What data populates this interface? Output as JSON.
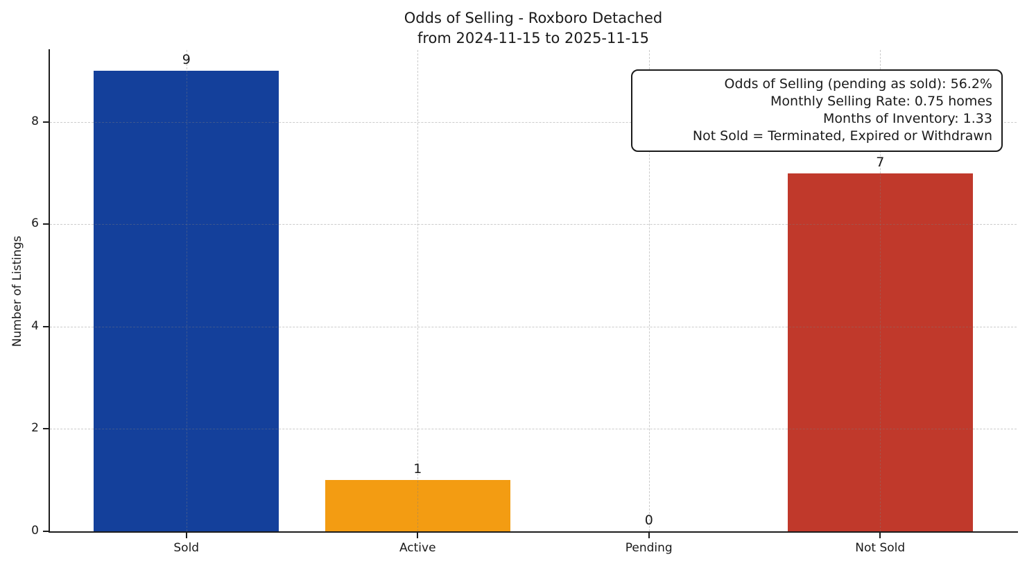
{
  "figure": {
    "title_line1": "Odds of Selling - Roxboro Detached",
    "title_line2": "from 2024-11-15 to 2025-11-15",
    "ylabel": "Number of Listings"
  },
  "annotation": {
    "lines": [
      "Odds of Selling (pending as sold): 56.2%",
      "Monthly Selling Rate: 0.75 homes",
      "Months of Inventory: 1.33",
      "Not Sold = Terminated, Expired or Withdrawn"
    ]
  },
  "chart_data": {
    "type": "bar",
    "title": "Odds of Selling - Roxboro Detached\nfrom 2024-11-15 to 2025-11-15",
    "categories": [
      "Sold",
      "Active",
      "Pending",
      "Not Sold"
    ],
    "values": [
      9,
      1,
      0,
      7
    ],
    "value_labels": [
      "9",
      "1",
      "0",
      "7"
    ],
    "bar_colors": [
      "#14409B",
      "#F39C12",
      null,
      "#C0392B"
    ],
    "bar_width": 0.8,
    "xlabel": "",
    "ylabel": "Number of Listings",
    "ylim": [
      0,
      9.41
    ],
    "xlim": [
      -0.59,
      3.59
    ],
    "yticks": [
      0,
      2,
      4,
      6,
      8
    ],
    "grid": true,
    "grid_style": "dashed",
    "grid_over_bars": true,
    "legend": "none",
    "axis_color": "#1c1c1c",
    "annotation_lines": [
      "Odds of Selling (pending as sold): 56.2%",
      "Monthly Selling Rate: 0.75 homes",
      "Months of Inventory: 1.33",
      "Not Sold = Terminated, Expired or Withdrawn"
    ]
  }
}
